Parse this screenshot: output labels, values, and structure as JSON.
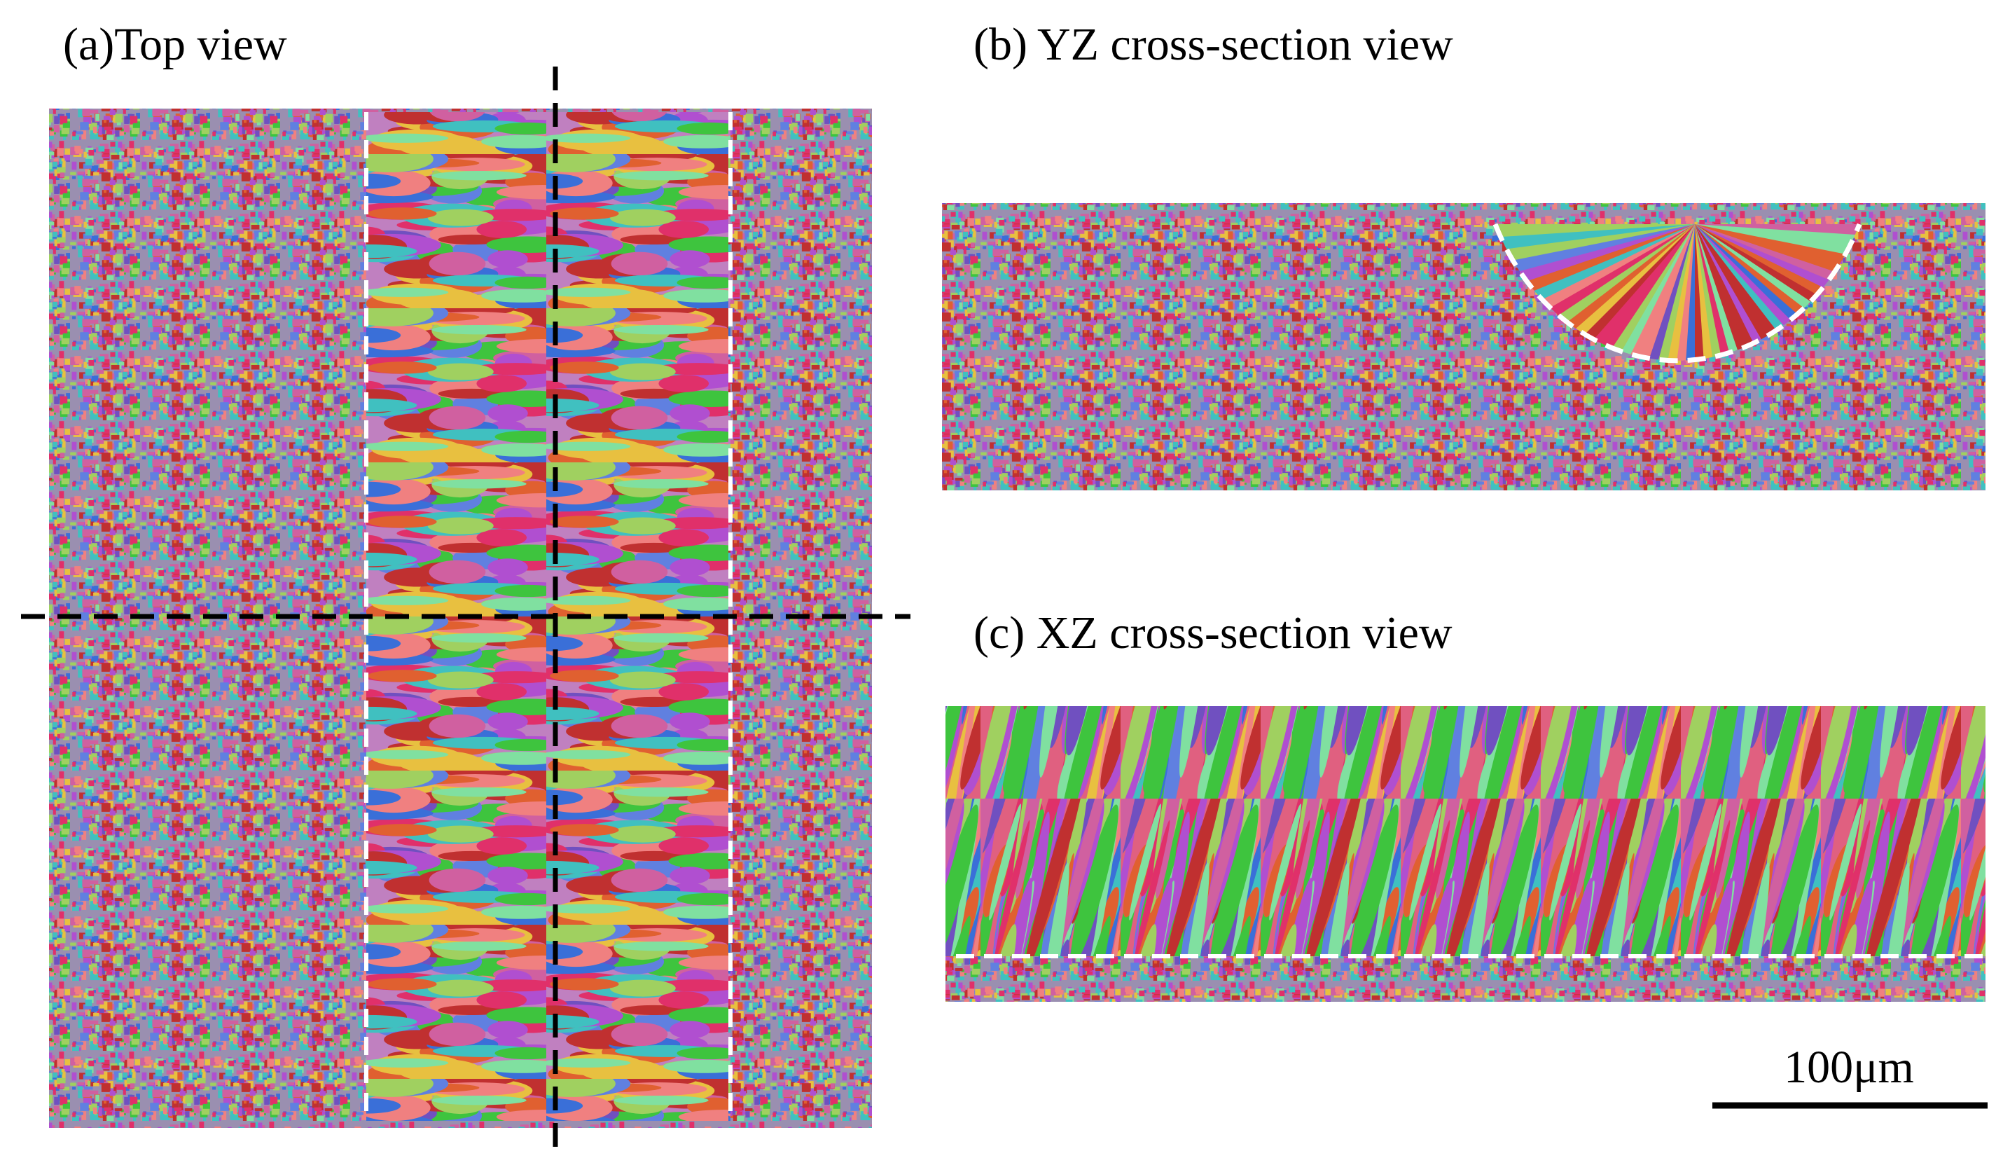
{
  "panels": [
    {
      "title": "(a)Top view"
    },
    {
      "title": "(b) YZ cross-section view"
    },
    {
      "title": "(c) XZ cross-section view"
    }
  ],
  "scale_bar": {
    "label": "100μm"
  }
}
